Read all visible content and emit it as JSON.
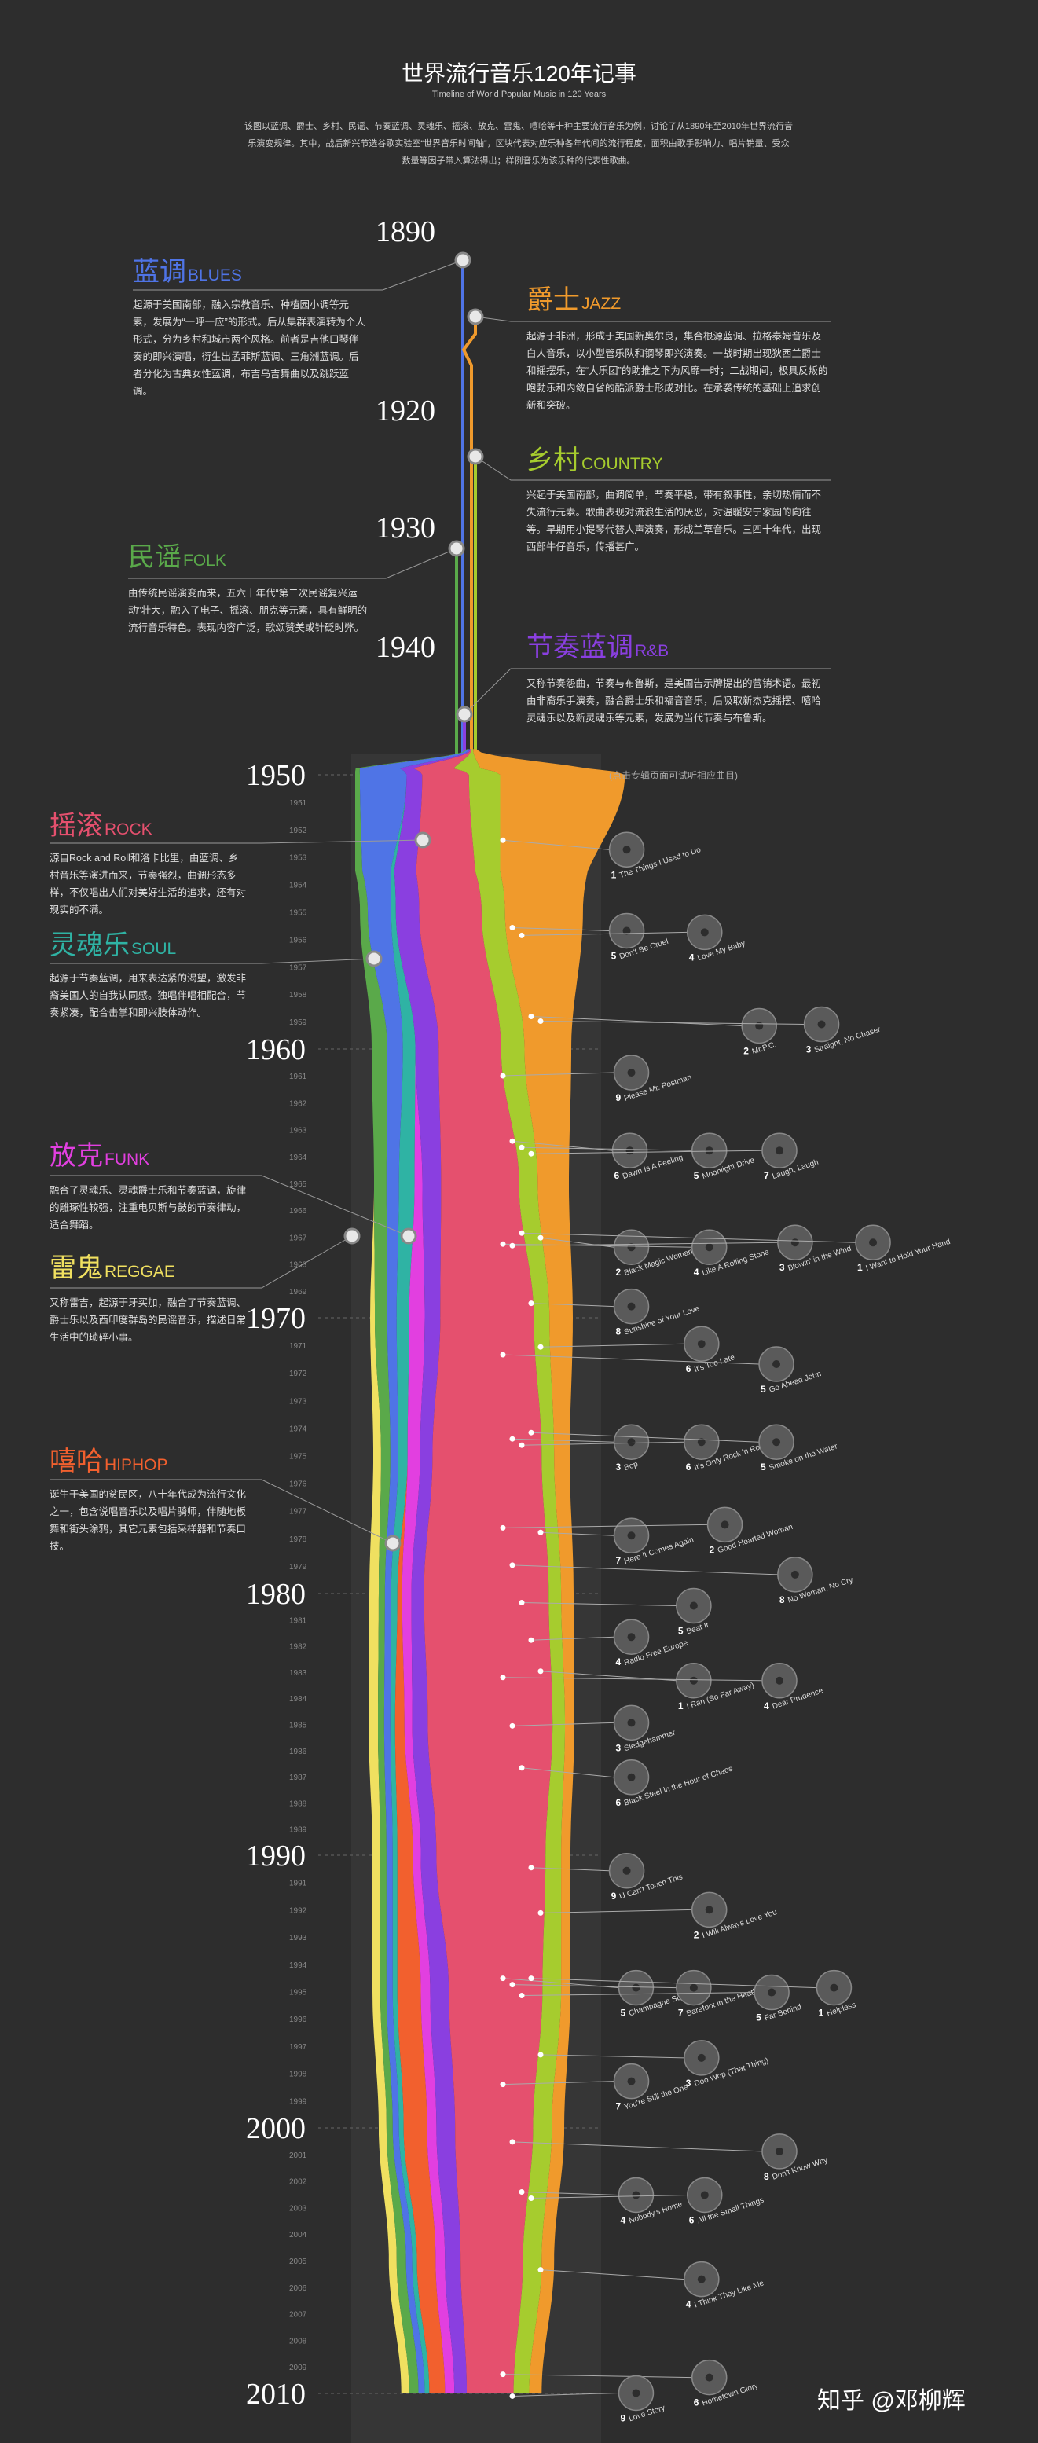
{
  "header": {
    "title": "世界流行音乐120年记事",
    "subtitle": "Timeline of World Popular Music in 120 Years",
    "intro": "该图以蓝调、爵士、乡村、民谣、节奏蓝调、灵魂乐、摇滚、放克、雷鬼、嘻哈等十种主要流行音乐为例，讨论了从1890年至2010年世界流行音乐演变规律。其中，战后新兴节选谷歌实验室“世界音乐时间轴”，区块代表对应乐种各年代间的流行程度，面积由歌手影响力、唱片销量、受众数量等因子带入算法得出；样例音乐为该乐种的代表性歌曲。"
  },
  "timeline": {
    "decades": [
      1890,
      1920,
      1930,
      1940,
      1950,
      1960,
      1970,
      1980,
      1990,
      2000,
      2010
    ],
    "years": [
      1951,
      1952,
      1953,
      1954,
      1955,
      1956,
      1957,
      1958,
      1959,
      1961,
      1962,
      1963,
      1964,
      1965,
      1966,
      1967,
      1968,
      1969,
      1971,
      1972,
      1973,
      1974,
      1975,
      1976,
      1977,
      1978,
      1979,
      1981,
      1982,
      1983,
      1984,
      1985,
      1986,
      1987,
      1988,
      1989,
      1991,
      1992,
      1993,
      1994,
      1995,
      1996,
      1997,
      1998,
      1999,
      2001,
      2002,
      2003,
      2004,
      2005,
      2006,
      2007,
      2008,
      2009
    ]
  },
  "genres": [
    {
      "name_cn": "蓝调",
      "name_en": "BLUES",
      "color": "#4f74e6",
      "description": "起源于美国南部，融入宗教音乐、种植园小调等元素，发展为“一呼一应”的形式。后从集群表演转为个人形式，分为乡村和城市两个风格。前者是吉他口琴伴奏的即兴演唱，衍生出孟菲斯蓝调、三角洲蓝调。后者分化为古典女性蓝调，布吉乌吉舞曲以及跳跃蓝调。"
    },
    {
      "name_cn": "爵士",
      "name_en": "JAZZ",
      "color": "#f09a2c",
      "description": "起源于非洲，形成于美国新奥尔良，集合根源蓝调、拉格泰姆音乐及白人音乐，以小型管乐队和钢琴即兴演奏。一战时期出现狄西兰爵士和摇摆乐，在“大乐团”的助推之下为风靡一时；二战期间，极具反叛的咆勃乐和内敛自省的酷派爵士形成对比。在承袭传统的基础上追求创新和突破。"
    },
    {
      "name_cn": "乡村",
      "name_en": "COUNTRY",
      "color": "#a6cc2e",
      "description": "兴起于美国南部，曲调简单，节奏平稳，带有叙事性，亲切热情而不失流行元素。歌曲表现对流浪生活的厌恶，对温暖安宁家园的向往等。早期用小提琴代替人声演奏，形成兰草音乐。三四十年代，出现西部牛仔音乐，传播甚广。"
    },
    {
      "name_cn": "民谣",
      "name_en": "FOLK",
      "color": "#5aa94a",
      "description": "由传统民谣演变而来，五六十年代“第二次民谣复兴运动”壮大，融入了电子、摇滚、朋克等元素，具有鲜明的流行音乐特色。表现内容广泛，歌颂赞美或针砭时弊。"
    },
    {
      "name_cn": "节奏蓝调",
      "name_en": "R&B",
      "color": "#8a3fe0",
      "description": "又称节奏怨曲，节奏与布鲁斯，是美国告示牌提出的营销术语。最初由非裔乐手演奏，融合爵士乐和福音音乐，后吸取新杰克摇摆、嘻哈灵魂乐以及新灵魂乐等元素，发展为当代节奏与布鲁斯。"
    },
    {
      "name_cn": "摇滚",
      "name_en": "ROCK",
      "color": "#e5506e",
      "description": "源自Rock and Roll和洛卡比里，由蓝调、乡村音乐等演进而来，节奏强烈，曲调形态多样，不仅唱出人们对美好生活的追求，还有对现实的不满。"
    },
    {
      "name_cn": "灵魂乐",
      "name_en": "SOUL",
      "color": "#2fb3a4",
      "description": "起源于节奏蓝调，用来表达紧的渴望，激发非裔美国人的自我认同感。独唱伴唱相配合，节奏紧凑，配合击掌和即兴肢体动作。"
    },
    {
      "name_cn": "放克",
      "name_en": "FUNK",
      "color": "#e23fe0",
      "description": "融合了灵魂乐、灵魂爵士乐和节奏蓝调，旋律的雕琢性较强，注重电贝斯与鼓的节奏律动，适合舞蹈。"
    },
    {
      "name_cn": "雷鬼",
      "name_en": "REGGAE",
      "color": "#f0e060",
      "description": "又称雷吉，起源于牙买加，融合了节奏蓝调、爵士乐以及西印度群岛的民谣音乐，描述日常生活中的琐碎小事。"
    },
    {
      "name_cn": "嘻哈",
      "name_en": "HIPHOP",
      "color": "#f2602e",
      "description": "诞生于美国的贫民区，八十年代成为流行文化之一，包含说唱音乐以及唱片骑师，伴随地板舞和街头涂鸦，其它元素包括采样器和节奏口技。"
    }
  ],
  "note": "(点击专辑页面可试听相应曲目)",
  "albums": [
    {
      "number": 1,
      "title": "The Things I Used to Do"
    },
    {
      "number": 5,
      "title": "Don't Be Cruel"
    },
    {
      "number": 4,
      "title": "Love My Baby"
    },
    {
      "number": 2,
      "title": "Mr.P.C."
    },
    {
      "number": 3,
      "title": "Straight, No Chaser"
    },
    {
      "number": 9,
      "title": "Please Mr. Postman"
    },
    {
      "number": 6,
      "title": "Dawn Is A Feeling"
    },
    {
      "number": 5,
      "title": "Moonlight Drive"
    },
    {
      "number": 7,
      "title": "Laugh, Laugh"
    },
    {
      "number": 2,
      "title": "Black Magic Woman"
    },
    {
      "number": 4,
      "title": "Like A Rolling Stone"
    },
    {
      "number": 3,
      "title": "Blowin' in the Wind"
    },
    {
      "number": 1,
      "title": "I Want to Hold Your Hand"
    },
    {
      "number": 8,
      "title": "Sunshine of Your Love"
    },
    {
      "number": 6,
      "title": "It's Too Late"
    },
    {
      "number": 5,
      "title": "Go Ahead John"
    },
    {
      "number": 3,
      "title": "Bop"
    },
    {
      "number": 6,
      "title": "It's Only Rock 'n Roll"
    },
    {
      "number": 5,
      "title": "Smoke on the Water"
    },
    {
      "number": 7,
      "title": "Here It Comes Again"
    },
    {
      "number": 2,
      "title": "Good Hearted Woman"
    },
    {
      "number": 8,
      "title": "No Woman, No Cry"
    },
    {
      "number": 5,
      "title": "Beat It"
    },
    {
      "number": 4,
      "title": "Radio Free Europe"
    },
    {
      "number": 1,
      "title": "I Ran (So Far Away)"
    },
    {
      "number": 4,
      "title": "Dear Prudence"
    },
    {
      "number": 3,
      "title": "Sledgehammer"
    },
    {
      "number": 6,
      "title": "Black Steel in the Hour of Chaos"
    },
    {
      "number": 9,
      "title": "U Can't Touch This"
    },
    {
      "number": 2,
      "title": "I Will Always Love You"
    },
    {
      "number": 5,
      "title": "Champagne Supernova"
    },
    {
      "number": 7,
      "title": "Barefoot in the Heather"
    },
    {
      "number": 5,
      "title": "Far Behind"
    },
    {
      "number": 1,
      "title": "Helpless"
    },
    {
      "number": 3,
      "title": "Doo Wop (That Thing)"
    },
    {
      "number": 7,
      "title": "You're Still the One"
    },
    {
      "number": 8,
      "title": "Don't Know Why"
    },
    {
      "number": 4,
      "title": "Nobody's Home"
    },
    {
      "number": 6,
      "title": "All the Small Things"
    },
    {
      "number": 4,
      "title": "I Think They Like Me"
    },
    {
      "number": 6,
      "title": "Hometown Glory"
    },
    {
      "number": 9,
      "title": "Love Story"
    }
  ],
  "watermark": "知乎 @邓柳辉"
}
